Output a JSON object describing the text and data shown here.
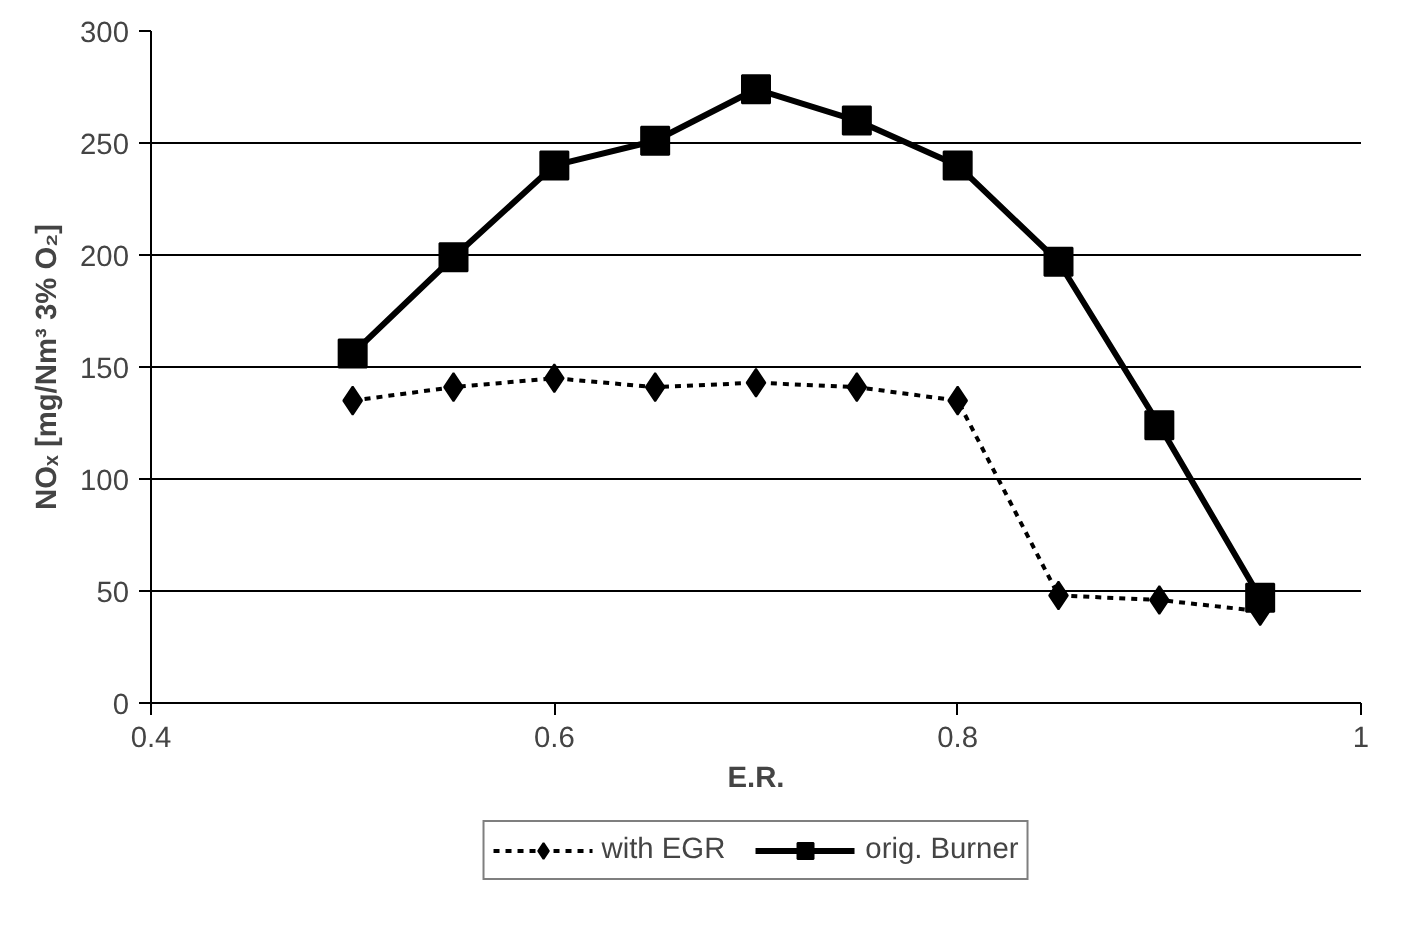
{
  "chart_data": {
    "type": "line",
    "xlabel": "E.R.",
    "ylabel": "NOₓ [mg/Nm³ 3% O₂]",
    "x": [
      0.5,
      0.55,
      0.6,
      0.65,
      0.7,
      0.75,
      0.8,
      0.85,
      0.9,
      0.95
    ],
    "series": [
      {
        "name": "with EGR",
        "color": "#000000",
        "marker": "diamond",
        "line_style": "dotted",
        "values": [
          135,
          141,
          145,
          141,
          143,
          141,
          135,
          48,
          46,
          41
        ]
      },
      {
        "name": "orig. Burner",
        "color": "#000000",
        "marker": "square",
        "line_style": "solid",
        "values": [
          156,
          199,
          240,
          251,
          274,
          260,
          240,
          197,
          124,
          47
        ]
      }
    ],
    "xlim": [
      0.4,
      1
    ],
    "xticks": [
      0.4,
      0.6,
      0.8,
      1
    ],
    "ylim": [
      0,
      300
    ],
    "yticks": [
      0,
      50,
      100,
      150,
      200,
      250,
      300
    ],
    "grid": "y",
    "legend": "bottom"
  }
}
